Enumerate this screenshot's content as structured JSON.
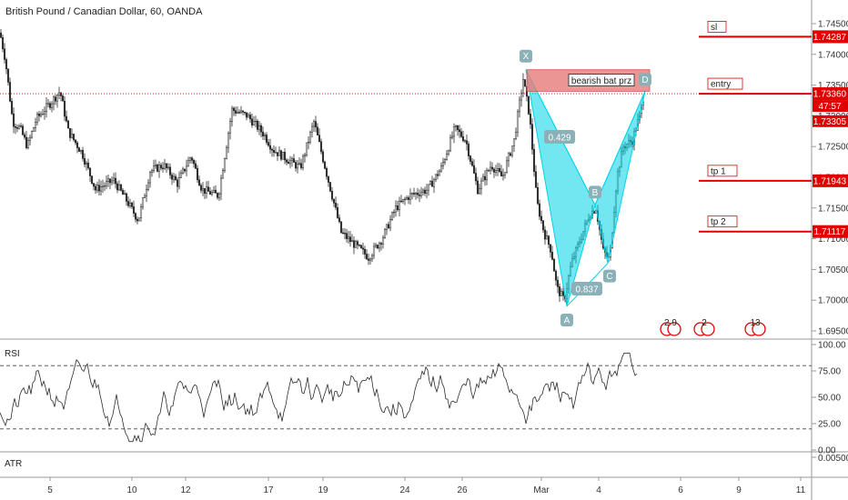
{
  "title": "British Pound / Canadian Dollar, 60, OANDA",
  "colors": {
    "up": "#2c2c2c",
    "down": "#2c2c2c",
    "line_red": "#e00000",
    "tag_red": "#e00000",
    "pattern": "#00d4e6",
    "prz": "#e77b7b",
    "point": "#8ab1b7"
  },
  "chart_data": {
    "type": "candlestick",
    "y_ticks": [
      "1.74500",
      "1.74000",
      "1.73500",
      "1.73000",
      "1.72500",
      "1.72000",
      "1.71500",
      "1.71000",
      "1.70500",
      "1.70000",
      "1.69500"
    ],
    "y_range": [
      1.6925,
      1.7485
    ],
    "x_ticks": [
      "5",
      "10",
      "12",
      "17",
      "19",
      "24",
      "26",
      "Mar",
      "4",
      "6",
      "9",
      "11"
    ],
    "price_levels": [
      {
        "label": "sl",
        "value": "1.74287"
      },
      {
        "label": "entry",
        "value": "1.73360"
      },
      {
        "label": "tp 1",
        "value": "1.71943"
      },
      {
        "label": "tp 2",
        "value": "1.71117"
      }
    ],
    "current_price": "1.73360",
    "countdown": "47:57",
    "prior_close": "1.73305",
    "pattern": {
      "name": "bearish bat prz",
      "points": [
        {
          "label": "X",
          "price": 1.7375
        },
        {
          "label": "A",
          "price": 1.699
        },
        {
          "label": "B",
          "price": 1.7155
        },
        {
          "label": "C",
          "price": 1.706
        },
        {
          "label": "D",
          "price": 1.734
        }
      ],
      "ratios": [
        "0.429",
        "0.837"
      ],
      "prz_range": [
        1.734,
        1.7375
      ]
    },
    "event_markers": [
      "2 9",
      "2",
      "13"
    ],
    "rsi": {
      "label": "RSI",
      "ticks": [
        "100.00",
        "75.00",
        "50.00",
        "25.00",
        "0.00"
      ],
      "range": [
        0,
        100
      ],
      "bands": [
        80,
        20
      ]
    },
    "atr": {
      "label": "ATR",
      "ticks": [
        "0.00500"
      ]
    }
  }
}
